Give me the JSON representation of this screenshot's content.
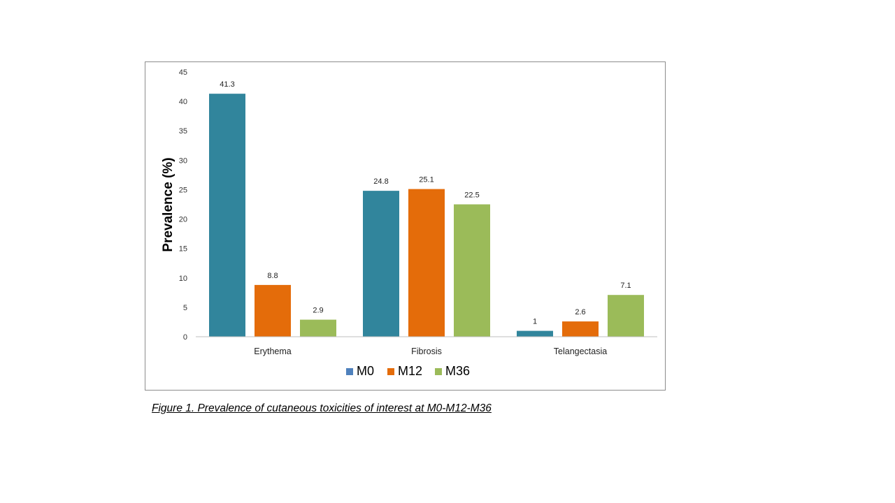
{
  "caption": "Figure 1. Prevalence of cutaneous toxicities of interest at M0-M12-M36",
  "chart_data": {
    "type": "bar",
    "title": "",
    "xlabel": "",
    "ylabel": "Prevalence (%)",
    "ylim": [
      0,
      45
    ],
    "yticks": [
      0,
      5,
      10,
      15,
      20,
      25,
      30,
      35,
      40,
      45
    ],
    "grid": false,
    "legend_position": "bottom",
    "categories": [
      "Erythema",
      "Fibrosis",
      "Telangectasia"
    ],
    "series": [
      {
        "name": "M0",
        "values": [
          41.3,
          24.8,
          1
        ],
        "labels": [
          "41.3",
          "24.8",
          "1"
        ],
        "color": "#31859c",
        "legend_color": "#4f81bd"
      },
      {
        "name": "M12",
        "values": [
          8.8,
          25.1,
          2.6
        ],
        "labels": [
          "8.8",
          "25.1",
          "2.6"
        ],
        "color": "#e46c0a",
        "legend_color": "#e46c0a"
      },
      {
        "name": "M36",
        "values": [
          2.9,
          22.5,
          7.1
        ],
        "labels": [
          "2.9",
          "22.5",
          "7.1"
        ],
        "color": "#9bbb59",
        "legend_color": "#9bbb59"
      }
    ]
  }
}
